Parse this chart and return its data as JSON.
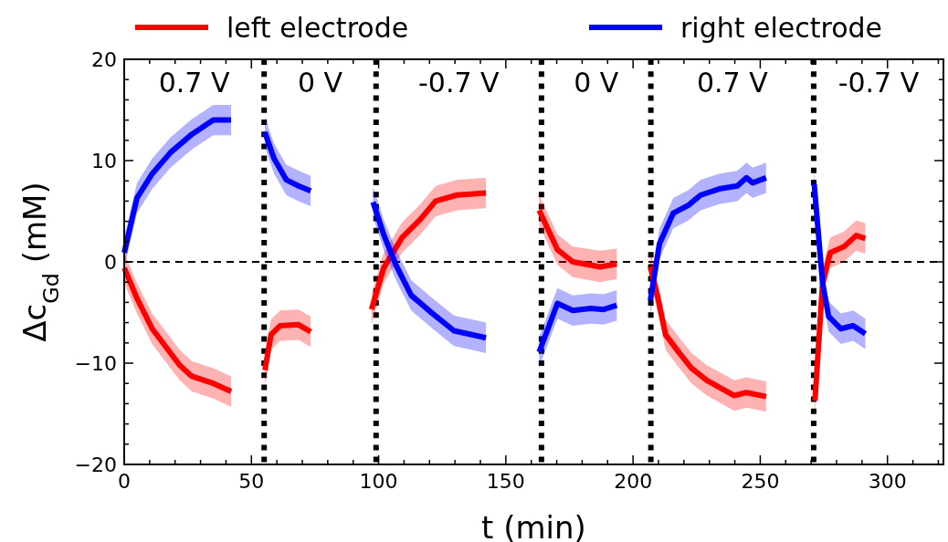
{
  "chart_data": {
    "type": "line",
    "xlabel": "t (min)",
    "ylabel": "Δc$_{Gd}$ (mM)",
    "xlim": [
      0,
      322
    ],
    "ylim": [
      -20,
      20
    ],
    "xticks": [
      0,
      {
        "value": 10,
        "label": null
      },
      {
        "value": 20,
        "label": null
      },
      {
        "value": 30,
        "label": null
      },
      {
        "value": 40,
        "label": null
      },
      50,
      {
        "value": 60,
        "label": null
      },
      {
        "value": 70,
        "label": null
      },
      {
        "value": 80,
        "label": null
      },
      {
        "value": 90,
        "label": null
      },
      100,
      {
        "value": 110,
        "label": null
      },
      {
        "value": 120,
        "label": null
      },
      {
        "value": 130,
        "label": null
      },
      {
        "value": 140,
        "label": null
      },
      150,
      {
        "value": 160,
        "label": null
      },
      {
        "value": 170,
        "label": null
      },
      {
        "value": 180,
        "label": null
      },
      {
        "value": 190,
        "label": null
      },
      200,
      {
        "value": 210,
        "label": null
      },
      {
        "value": 220,
        "label": null
      },
      {
        "value": 230,
        "label": null
      },
      {
        "value": 240,
        "label": null
      },
      250,
      {
        "value": 260,
        "label": null
      },
      {
        "value": 270,
        "label": null
      },
      {
        "value": 280,
        "label": null
      },
      {
        "value": 290,
        "label": null
      },
      300,
      {
        "value": 310,
        "label": null
      },
      {
        "value": 320,
        "label": null
      }
    ],
    "yticks": [
      {
        "value": -20,
        "label": "−20"
      },
      {
        "value": -18,
        "label": null
      },
      {
        "value": -16,
        "label": null
      },
      {
        "value": -14,
        "label": null
      },
      {
        "value": -12,
        "label": null
      },
      {
        "value": -10,
        "label": "−10"
      },
      {
        "value": -8,
        "label": null
      },
      {
        "value": -6,
        "label": null
      },
      {
        "value": -4,
        "label": null
      },
      {
        "value": -2,
        "label": null
      },
      0,
      {
        "value": 2,
        "label": null
      },
      {
        "value": 4,
        "label": null
      },
      {
        "value": 6,
        "label": null
      },
      {
        "value": 8,
        "label": null
      },
      10,
      {
        "value": 12,
        "label": null
      },
      {
        "value": 14,
        "label": null
      },
      {
        "value": 16,
        "label": null
      },
      {
        "value": 18,
        "label": null
      },
      20
    ],
    "grid": false,
    "legend": "top",
    "marker": "none",
    "line_style": "solid",
    "ref_lines": [
      {
        "axis": "x",
        "value": 55,
        "color": "#000000",
        "line_style": "dotted"
      },
      {
        "axis": "x",
        "value": 99,
        "color": "#000000",
        "line_style": "dotted"
      },
      {
        "axis": "x",
        "value": 164,
        "color": "#000000",
        "line_style": "dotted"
      },
      {
        "axis": "x",
        "value": 207,
        "color": "#000000",
        "line_style": "dotted"
      },
      {
        "axis": "x",
        "value": 271,
        "color": "#000000",
        "line_style": "dotted"
      },
      {
        "axis": "y",
        "value": 0,
        "color": "#000000",
        "line_style": "dashed"
      }
    ],
    "annotations": [
      "0.7 V",
      "0 V",
      "-0.7 V",
      "0 V",
      "0.7 V",
      "-0.7 V"
    ],
    "series": [
      {
        "name": "left electrode",
        "color": "#ff0000",
        "x": [
          0,
          5,
          11,
          21.8,
          26.6,
          35,
          42,
          null,
          55.3,
          57.7,
          61.3,
          68.5,
          73.3,
          null,
          97.2,
          102,
          109.2,
          116.4,
          122.4,
          130.8,
          142.2,
          null,
          163.1,
          170.3,
          176.3,
          187.1,
          193.6,
          null,
          206.8,
          209.8,
          212.8,
          218.2,
          223,
          229,
          239.8,
          244.6,
          252.3,
          null,
          271.5,
          274.5,
          277.5,
          282.9,
          287.7,
          291.3
        ],
        "values": [
          -0.6,
          -3.6,
          -6.6,
          -10.2,
          -11.3,
          -12,
          -12.8,
          null,
          -10.7,
          -7.2,
          -6.3,
          -6.2,
          -6.9,
          null,
          -4.7,
          -0.6,
          2.4,
          4.2,
          6,
          6.6,
          6.8,
          null,
          5.1,
          1.2,
          0,
          -0.5,
          -0.2,
          null,
          -0.5,
          -3.6,
          -7.2,
          -9,
          -10.5,
          -11.7,
          -13.2,
          -12.9,
          -13.3,
          null,
          -13.7,
          -2.1,
          0.9,
          1.5,
          2.6,
          2.3
        ],
        "lower": [
          -2.1,
          -5.1,
          -8.1,
          -11.7,
          -12.8,
          -13.5,
          -14.3,
          null,
          -12.2,
          -8.7,
          -7.8,
          -7.7,
          -8.4,
          null,
          -6.2,
          -2.1,
          0.9,
          2.7,
          4.5,
          5.1,
          5.3,
          null,
          3.6,
          -0.3,
          -1.5,
          -2,
          -1.7,
          null,
          -2,
          -5.1,
          -8.7,
          -10.5,
          -12,
          -13.2,
          -14.7,
          -14.4,
          -14.8,
          null,
          -15.2,
          -3.6,
          -0.6,
          0,
          1.1,
          0.8
        ],
        "upper": [
          0.9,
          -2.1,
          -5.1,
          -8.7,
          -9.8,
          -10.5,
          -11.3,
          null,
          -9.2,
          -5.7,
          -4.8,
          -4.7,
          -5.4,
          null,
          -3.2,
          0.9,
          3.9,
          5.7,
          7.5,
          8.1,
          8.3,
          null,
          6.6,
          2.7,
          1.5,
          1.1,
          1.3,
          null,
          1.1,
          -2.1,
          -5.7,
          -7.5,
          -9,
          -10.2,
          -11.7,
          -11.4,
          -11.8,
          null,
          -12.2,
          -0.6,
          2.4,
          3,
          4.1,
          3.8
        ]
      },
      {
        "name": "right electrode",
        "color": "#0000ff",
        "x": [
          0,
          5,
          11,
          18.2,
          26.6,
          35,
          42,
          null,
          55.3,
          58.9,
          63.7,
          68.5,
          73.3,
          null,
          97.8,
          102,
          106.8,
          112.8,
          121.2,
          129.6,
          142.2,
          null,
          163.1,
          170.3,
          176.3,
          183.5,
          188.4,
          193.6,
          null,
          206.8,
          210.4,
          215.8,
          221.8,
          226.6,
          233.8,
          241,
          244.6,
          247,
          252.3,
          null,
          271.2,
          274.5,
          276.9,
          281.7,
          286.5,
          291.3
        ],
        "values": [
          0.9,
          6.3,
          8.7,
          10.8,
          12.6,
          14,
          14,
          null,
          12.8,
          10.2,
          8.1,
          7.5,
          7,
          null,
          5.9,
          2.7,
          -0.3,
          -3.3,
          -5.1,
          -6.8,
          -7.5,
          null,
          -8.9,
          -4.1,
          -4.8,
          -4.6,
          -4.7,
          -4.3,
          null,
          -3.8,
          1.8,
          4.8,
          5.6,
          6.6,
          7.2,
          7.5,
          8.3,
          7.8,
          8.3,
          null,
          7.7,
          -2.1,
          -5.4,
          -6.6,
          -6.3,
          -7.1
        ],
        "lower": [
          -0.6,
          4.8,
          7.2,
          9.3,
          11.1,
          12.5,
          12.5,
          null,
          11.3,
          8.7,
          6.6,
          6,
          5.5,
          null,
          4.4,
          1.2,
          -1.8,
          -4.8,
          -6.6,
          -8.3,
          -9,
          null,
          -10.4,
          -5.6,
          -6.3,
          -6.1,
          -6.2,
          -5.8,
          null,
          -5.3,
          0.3,
          3.3,
          4.1,
          5.1,
          5.7,
          6,
          6.8,
          6.3,
          6.8,
          null,
          6.2,
          -3.6,
          -6.9,
          -8.1,
          -7.8,
          -8.6
        ],
        "upper": [
          2.4,
          7.8,
          10.2,
          12.3,
          14.1,
          15.5,
          15.5,
          null,
          14.3,
          11.7,
          9.6,
          9,
          8.5,
          null,
          7.4,
          4.2,
          1.2,
          -1.8,
          -3.6,
          -5.3,
          -6,
          null,
          -7.4,
          -2.6,
          -3.3,
          -3.1,
          -3.2,
          -2.8,
          null,
          -2.3,
          3.3,
          6.3,
          7.1,
          8.1,
          8.7,
          9,
          9.8,
          9.3,
          9.8,
          null,
          9.2,
          -0.6,
          -3.9,
          -5.1,
          -4.8,
          -5.6
        ]
      }
    ]
  }
}
